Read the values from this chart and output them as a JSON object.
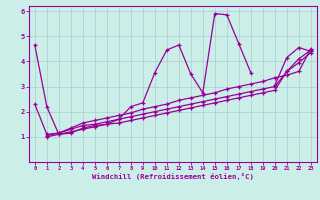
{
  "xlabel": "Windchill (Refroidissement éolien,°C)",
  "line_color": "#990099",
  "bg_color": "#cceee8",
  "grid_color": "#aacccc",
  "x_data": [
    0,
    1,
    2,
    3,
    4,
    5,
    6,
    7,
    8,
    9,
    10,
    11,
    12,
    13,
    14,
    15,
    16,
    17,
    18,
    19,
    20,
    21,
    22,
    23
  ],
  "series1": [
    4.65,
    2.2,
    1.1,
    1.15,
    1.35,
    1.45,
    1.5,
    1.7,
    2.2,
    2.35,
    3.55,
    4.45,
    4.65,
    3.5,
    2.75,
    5.9,
    5.85,
    4.7,
    3.55,
    null,
    3.05,
    4.15,
    4.55,
    4.4
  ],
  "series2": [
    2.3,
    1.1,
    1.15,
    1.35,
    1.55,
    1.65,
    1.75,
    1.85,
    1.95,
    2.1,
    2.2,
    2.3,
    2.45,
    2.55,
    2.65,
    2.75,
    2.9,
    3.0,
    3.1,
    3.2,
    3.35,
    3.45,
    3.6,
    4.5
  ],
  "series3": [
    null,
    1.05,
    1.15,
    1.3,
    1.45,
    1.5,
    1.6,
    1.7,
    1.8,
    1.9,
    2.0,
    2.1,
    2.2,
    2.3,
    2.4,
    2.5,
    2.6,
    2.7,
    2.8,
    2.9,
    3.0,
    3.6,
    4.1,
    4.45
  ],
  "series4": [
    null,
    1.0,
    1.1,
    1.2,
    1.3,
    1.4,
    1.5,
    1.55,
    1.65,
    1.75,
    1.85,
    1.95,
    2.05,
    2.15,
    2.25,
    2.35,
    2.45,
    2.55,
    2.65,
    2.75,
    2.85,
    3.6,
    3.95,
    4.35
  ],
  "ylim": [
    0,
    6.2
  ],
  "xlim": [
    -0.5,
    23.5
  ],
  "yticks": [
    1,
    2,
    3,
    4,
    5,
    6
  ],
  "xticks": [
    0,
    1,
    2,
    3,
    4,
    5,
    6,
    7,
    8,
    9,
    10,
    11,
    12,
    13,
    14,
    15,
    16,
    17,
    18,
    19,
    20,
    21,
    22,
    23
  ]
}
